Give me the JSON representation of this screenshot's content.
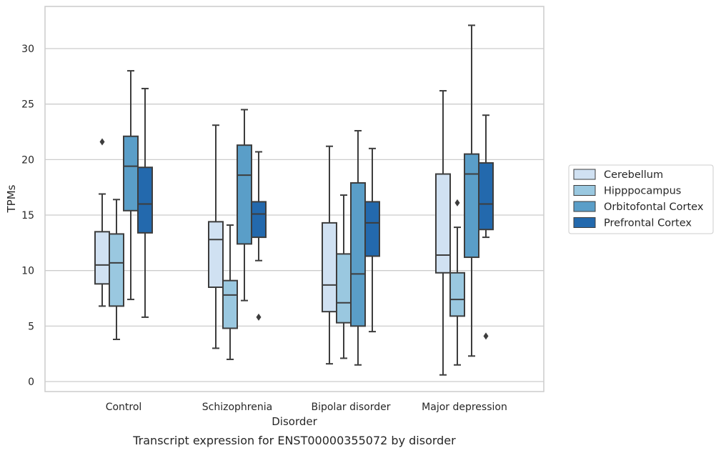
{
  "chart_data": {
    "type": "box",
    "title": "",
    "caption": "Transcript expression for ENST00000355072 by disorder",
    "xlabel": "Disorder",
    "ylabel": "TPMs",
    "ylim": [
      -0.9,
      33.8
    ],
    "yticks": [
      0,
      5,
      10,
      15,
      20,
      25,
      30
    ],
    "grid": true,
    "legend_placement": "right",
    "categories": [
      "Control",
      "Schizophrenia",
      "Bipolar disorder",
      "Major depression"
    ],
    "series": [
      {
        "name": "Cerebellum",
        "color": "#d0e1f2",
        "boxes": [
          {
            "whisker_low": 6.8,
            "q1": 8.8,
            "median": 10.5,
            "q3": 13.5,
            "whisker_high": 16.9,
            "outliers": [
              21.6
            ]
          },
          {
            "whisker_low": 3.0,
            "q1": 8.5,
            "median": 12.8,
            "q3": 14.4,
            "whisker_high": 23.1,
            "outliers": []
          },
          {
            "whisker_low": 1.6,
            "q1": 6.3,
            "median": 8.7,
            "q3": 14.3,
            "whisker_high": 21.2,
            "outliers": []
          },
          {
            "whisker_low": 0.6,
            "q1": 9.8,
            "median": 11.4,
            "q3": 18.7,
            "whisker_high": 26.2,
            "outliers": []
          }
        ]
      },
      {
        "name": "Hipppocampus",
        "color": "#9ac8e0",
        "boxes": [
          {
            "whisker_low": 3.8,
            "q1": 6.8,
            "median": 10.7,
            "q3": 13.3,
            "whisker_high": 16.4,
            "outliers": []
          },
          {
            "whisker_low": 2.0,
            "q1": 4.8,
            "median": 7.8,
            "q3": 9.1,
            "whisker_high": 14.1,
            "outliers": []
          },
          {
            "whisker_low": 2.1,
            "q1": 5.3,
            "median": 7.1,
            "q3": 11.5,
            "whisker_high": 16.8,
            "outliers": []
          },
          {
            "whisker_low": 1.5,
            "q1": 5.9,
            "median": 7.4,
            "q3": 9.8,
            "whisker_high": 13.9,
            "outliers": [
              16.1
            ]
          }
        ]
      },
      {
        "name": "Orbitofontal Cortex",
        "color": "#5a9ec8",
        "boxes": [
          {
            "whisker_low": 7.4,
            "q1": 15.4,
            "median": 19.4,
            "q3": 22.1,
            "whisker_high": 28.0,
            "outliers": []
          },
          {
            "whisker_low": 7.3,
            "q1": 12.4,
            "median": 18.6,
            "q3": 21.3,
            "whisker_high": 24.5,
            "outliers": []
          },
          {
            "whisker_low": 1.5,
            "q1": 5.0,
            "median": 9.7,
            "q3": 17.9,
            "whisker_high": 22.6,
            "outliers": []
          },
          {
            "whisker_low": 2.3,
            "q1": 11.2,
            "median": 18.7,
            "q3": 20.5,
            "whisker_high": 32.1,
            "outliers": []
          }
        ]
      },
      {
        "name": "Prefrontal Cortex",
        "color": "#2369ad",
        "boxes": [
          {
            "whisker_low": 5.8,
            "q1": 13.4,
            "median": 16.0,
            "q3": 19.3,
            "whisker_high": 26.4,
            "outliers": []
          },
          {
            "whisker_low": 10.9,
            "q1": 13.0,
            "median": 15.1,
            "q3": 16.2,
            "whisker_high": 20.7,
            "outliers": [
              5.8
            ]
          },
          {
            "whisker_low": 4.5,
            "q1": 11.3,
            "median": 14.3,
            "q3": 16.2,
            "whisker_high": 21.0,
            "outliers": []
          },
          {
            "whisker_low": 13.0,
            "q1": 13.7,
            "median": 16.0,
            "q3": 19.7,
            "whisker_high": 24.0,
            "outliers": [
              4.1
            ]
          }
        ]
      }
    ]
  }
}
